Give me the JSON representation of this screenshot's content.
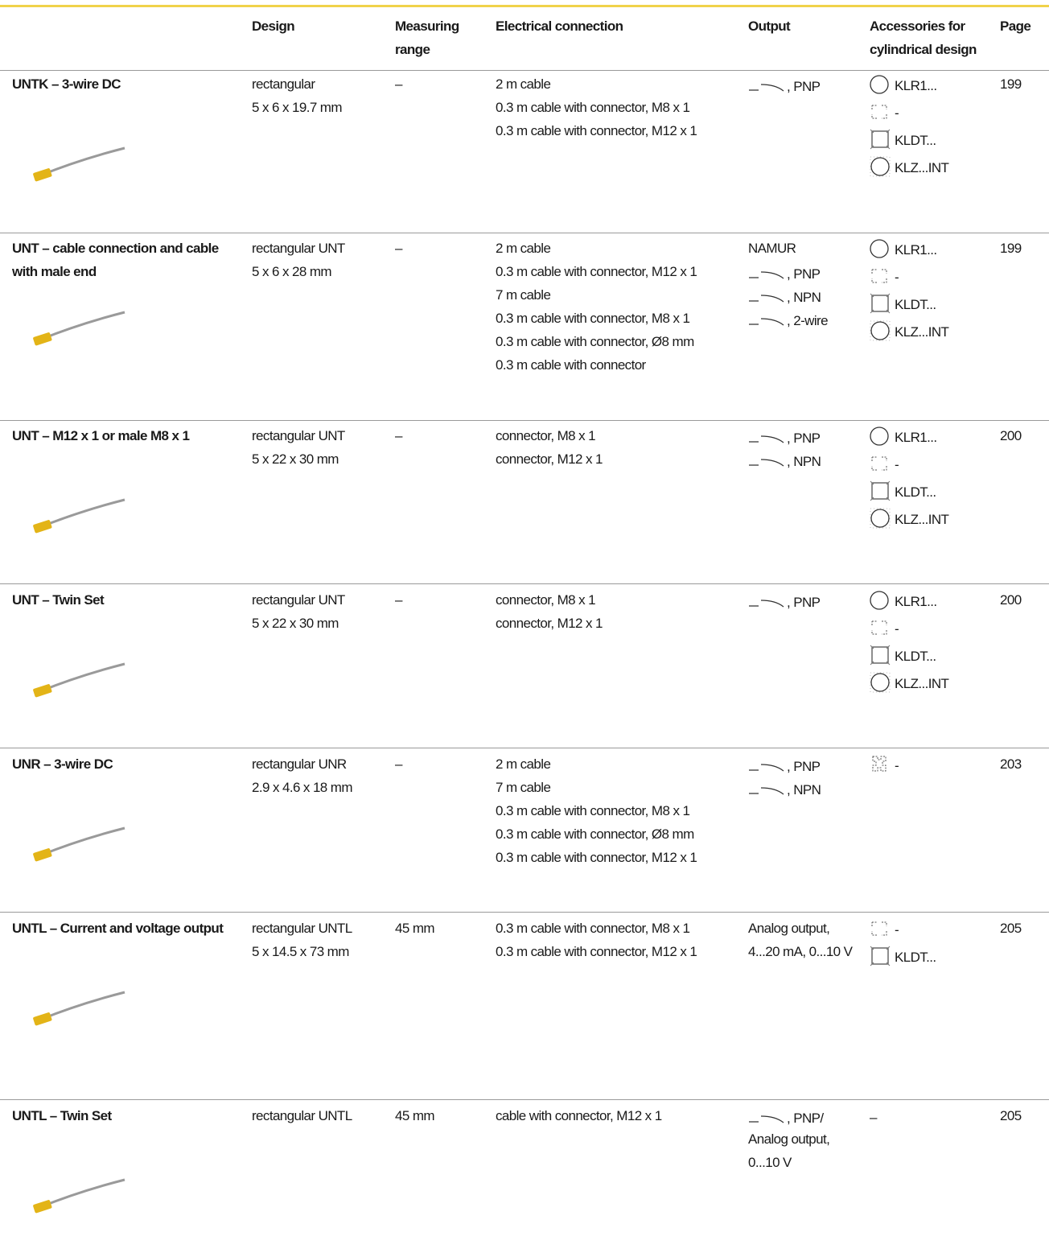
{
  "header": {
    "columns": [
      "Design",
      "Measuring range",
      "Electrical connection",
      "Output",
      "Accessories for cylindrical design",
      "Page"
    ]
  },
  "table": {
    "rows": [
      {
        "name": "UNTK – 3-wire DC",
        "design": [
          "rectangular",
          "5 x 6 x 19.7 mm"
        ],
        "range": "–",
        "electrical": [
          "2 m cable",
          "0.3 m cable with connector, M8 x 1",
          "0.3 m cable with connector, M12 x 1"
        ],
        "output": [
          {
            "switch": true,
            "text": ", PNP"
          }
        ],
        "accessories": [
          {
            "icon": "circle",
            "text": "KLR1..."
          },
          {
            "icon": "bracket",
            "text": "-"
          },
          {
            "icon": "square",
            "text": "KLDT..."
          },
          {
            "icon": "circle-square",
            "text": "KLZ...INT"
          }
        ],
        "page": "199"
      },
      {
        "name": "UNT – cable connection and cable with male end",
        "design": [
          "rectangular UNT",
          "5 x 6 x 28 mm"
        ],
        "range": "–",
        "electrical": [
          "2 m cable",
          "0.3 m cable with connector, M12 x 1",
          "7 m cable",
          "0.3 m cable with connector, M8 x 1",
          "0.3 m cable with connector, Ø8 mm",
          "0.3 m cable with connector"
        ],
        "output": [
          {
            "text": "NAMUR"
          },
          {
            "switch": true,
            "text": ", PNP"
          },
          {
            "switch": true,
            "text": ", NPN"
          },
          {
            "switch": true,
            "text": ", 2-wire"
          }
        ],
        "accessories": [
          {
            "icon": "circle",
            "text": "KLR1..."
          },
          {
            "icon": "bracket",
            "text": "-"
          },
          {
            "icon": "square",
            "text": "KLDT..."
          },
          {
            "icon": "circle-square",
            "text": "KLZ...INT"
          }
        ],
        "page": "199"
      },
      {
        "name": "UNT – M12 x 1 or male M8 x 1",
        "design": [
          "rectangular UNT",
          "5 x 22 x 30 mm"
        ],
        "range": "–",
        "electrical": [
          "connector, M8 x 1",
          "connector, M12 x 1"
        ],
        "output": [
          {
            "switch": true,
            "text": ", PNP"
          },
          {
            "switch": true,
            "text": ", NPN"
          }
        ],
        "accessories": [
          {
            "icon": "circle",
            "text": "KLR1..."
          },
          {
            "icon": "bracket",
            "text": "-"
          },
          {
            "icon": "square",
            "text": "KLDT..."
          },
          {
            "icon": "circle-square",
            "text": "KLZ...INT"
          }
        ],
        "page": "200"
      },
      {
        "name": "UNT – Twin Set",
        "design": [
          "rectangular UNT",
          "5 x 22 x 30 mm"
        ],
        "range": "–",
        "electrical": [
          "connector, M8 x 1",
          "connector, M12 x 1"
        ],
        "output": [
          {
            "switch": true,
            "text": ", PNP"
          }
        ],
        "accessories": [
          {
            "icon": "circle",
            "text": "KLR1..."
          },
          {
            "icon": "bracket",
            "text": "-"
          },
          {
            "icon": "square",
            "text": "KLDT..."
          },
          {
            "icon": "circle-square",
            "text": "KLZ...INT"
          }
        ],
        "page": "200"
      },
      {
        "name": "UNR – 3-wire DC",
        "design": [
          "rectangular UNR",
          "2.9 x 4.6 x 18 mm"
        ],
        "range": "–",
        "electrical": [
          "2 m cable",
          "7 m cable",
          "0.3 m cable with connector, M8 x 1",
          "0.3 m cable with connector, Ø8 mm",
          "0.3 m cable with connector, M12 x 1"
        ],
        "output": [
          {
            "switch": true,
            "text": ", PNP"
          },
          {
            "switch": true,
            "text": ", NPN"
          }
        ],
        "accessories": [
          {
            "icon": "cross",
            "text": "-"
          }
        ],
        "page": "203"
      },
      {
        "name": "UNTL – Current and voltage output",
        "design": [
          "rectangular UNTL",
          "5 x 14.5 x 73 mm"
        ],
        "range": "45 mm",
        "electrical": [
          "0.3 m cable with connector, M8 x 1",
          "0.3 m cable with connector, M12 x 1"
        ],
        "output": [
          {
            "text": "Analog output,"
          },
          {
            "text": "4...20 mA, 0...10 V"
          }
        ],
        "accessories": [
          {
            "icon": "bracket",
            "text": "-"
          },
          {
            "icon": "square",
            "text": "KLDT..."
          }
        ],
        "page": "205"
      },
      {
        "name": "UNTL – Twin Set",
        "design": [
          "rectangular UNTL"
        ],
        "range": "45 mm",
        "electrical": [
          "cable with connector, M12 x 1"
        ],
        "output": [
          {
            "switch": true,
            "text": ", PNP/"
          },
          {
            "text": "Analog output,"
          },
          {
            "text": "0...10 V"
          }
        ],
        "accessories": [
          {
            "text": "–"
          }
        ],
        "page": "205"
      }
    ]
  }
}
